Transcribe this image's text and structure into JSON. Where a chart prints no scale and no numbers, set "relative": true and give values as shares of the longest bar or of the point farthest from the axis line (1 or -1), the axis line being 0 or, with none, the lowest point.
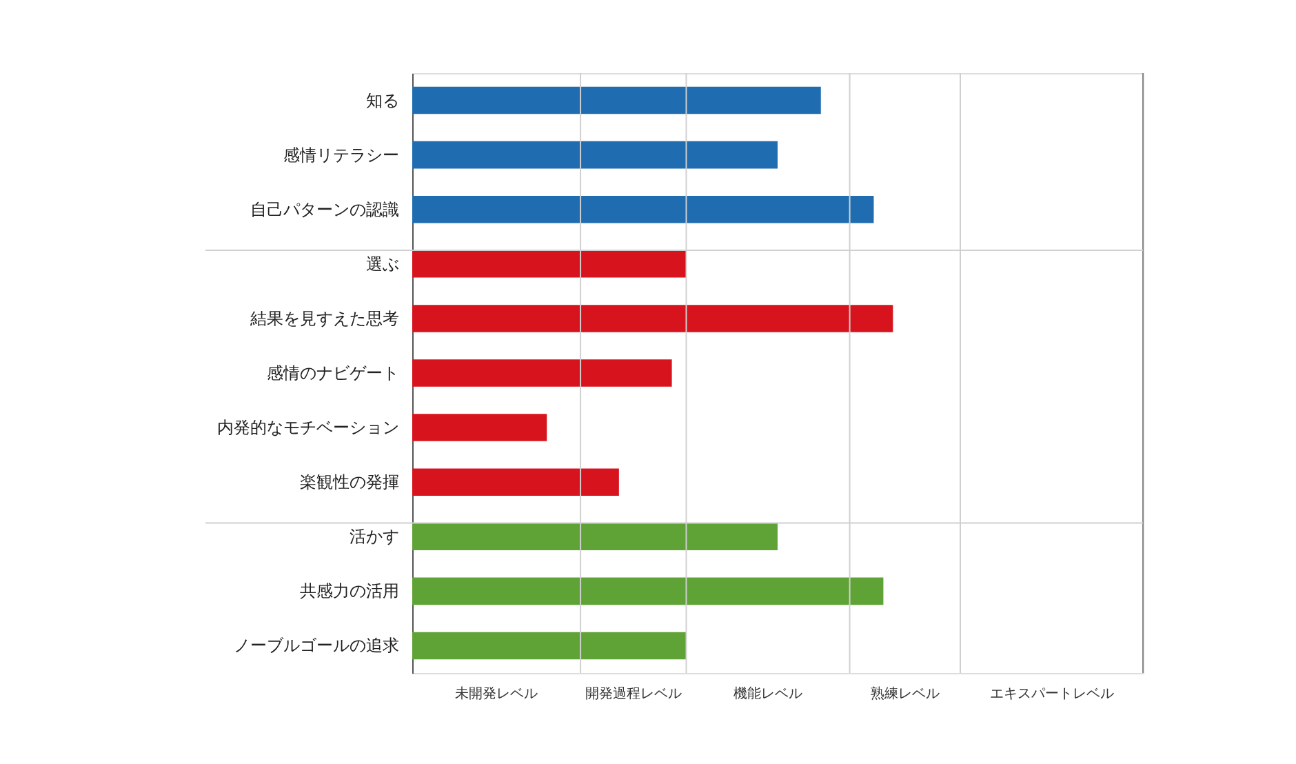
{
  "chart_data": {
    "type": "bar",
    "orientation": "horizontal",
    "relative": true,
    "categories": [
      "知る",
      "感情リテラシー",
      "自己パターンの認識",
      "選ぶ",
      "結果を見すえた思考",
      "感情のナビゲート",
      "内発的なモチベーション",
      "楽観性の発揮",
      "活かす",
      "共感力の活用",
      "ノーブルゴールの追求"
    ],
    "series": [
      {
        "color": "#1f6cb0",
        "values": [
          0.85,
          0.76,
          0.96,
          null,
          null,
          null,
          null,
          null,
          null,
          null,
          null
        ]
      },
      {
        "color": "#d7141e",
        "values": [
          null,
          null,
          null,
          0.57,
          1,
          0.54,
          0.28,
          0.43,
          null,
          null,
          null
        ]
      },
      {
        "color": "#5fa336",
        "values": [
          null,
          null,
          null,
          null,
          null,
          null,
          null,
          null,
          0.76,
          0.98,
          0.57
        ]
      }
    ],
    "annotations": [
      "未開発レベル",
      "開発過程レベル",
      "機能レベル",
      "熟練レベル",
      "エキスパートレベル"
    ],
    "legend": false,
    "ref_lines": [
      {
        "axis": "x",
        "value": 0.35,
        "color": "#d0d0d0"
      },
      {
        "axis": "x",
        "value": 0.57,
        "color": "#d0d0d0"
      },
      {
        "axis": "x",
        "value": 0.91,
        "color": "#d0d0d0"
      },
      {
        "axis": "x",
        "value": 1.14,
        "color": "#d0d0d0"
      },
      {
        "axis": "x",
        "value": 1.52,
        "color": "#888888"
      },
      {
        "axis": "y",
        "value": "選ぶ",
        "color": "#d0d0d0"
      },
      {
        "axis": "y",
        "value": "活かす",
        "color": "#d0d0d0"
      }
    ]
  }
}
